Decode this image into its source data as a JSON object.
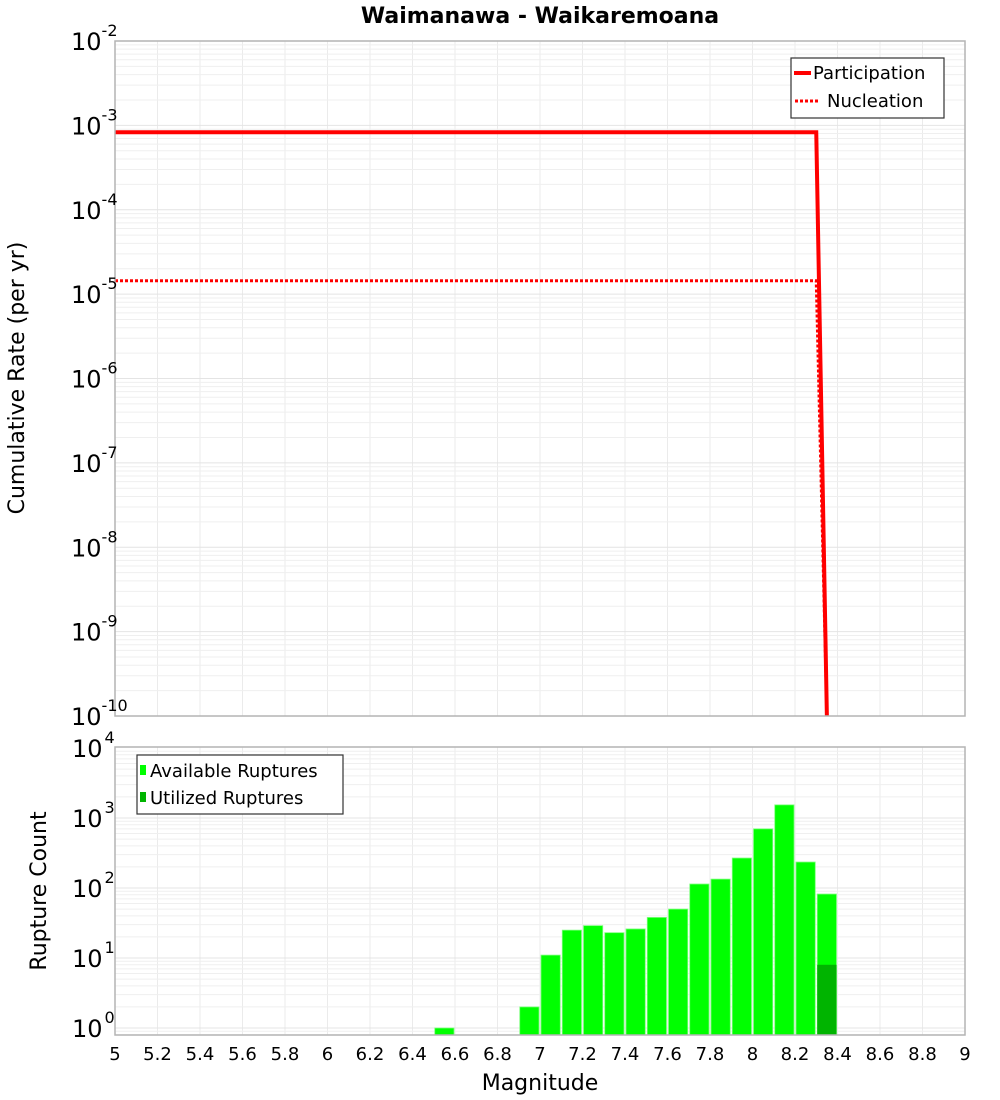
{
  "chart_data": [
    {
      "type": "line",
      "title": "Waimanawa - Waikaremoana",
      "xlabel": "Magnitude",
      "ylabel": "Cumulative Rate (per yr)",
      "xlim": [
        5,
        9
      ],
      "ylim": [
        1e-10,
        0.01
      ],
      "yscale": "log",
      "grid": true,
      "legend_position": "upper right",
      "y_ticks": [
        "10^-2",
        "10^-3",
        "10^-4",
        "10^-5",
        "10^-6",
        "10^-7",
        "10^-8",
        "10^-9",
        "10^-10"
      ],
      "series": [
        {
          "name": "Participation",
          "style": "solid",
          "color": "#ff0000",
          "x": [
            5.0,
            8.3,
            8.35
          ],
          "y": [
            0.00083,
            0.00083,
            1e-10
          ]
        },
        {
          "name": "Nucleation",
          "style": "dotted",
          "color": "#ff0000",
          "x": [
            5.0,
            8.3,
            8.35
          ],
          "y": [
            1.44e-05,
            1.44e-05,
            1e-10
          ]
        }
      ]
    },
    {
      "type": "bar",
      "xlabel": "Magnitude",
      "ylabel": "Rupture Count",
      "xlim": [
        5,
        9
      ],
      "ylim": [
        0.8,
        10000
      ],
      "yscale": "log",
      "grid": true,
      "legend_position": "upper left",
      "y_ticks": [
        "10^0",
        "10^1",
        "10^2",
        "10^3",
        "10^4"
      ],
      "x_ticks": [
        "5",
        "5.2",
        "5.4",
        "5.6",
        "5.8",
        "6",
        "6.2",
        "6.4",
        "6.6",
        "6.8",
        "7",
        "7.2",
        "7.4",
        "7.6",
        "7.8",
        "8",
        "8.2",
        "8.4",
        "8.6",
        "8.8",
        "9"
      ],
      "bin_width": 0.1,
      "categories": [
        6.55,
        6.95,
        7.05,
        7.15,
        7.25,
        7.35,
        7.45,
        7.55,
        7.65,
        7.75,
        7.85,
        7.95,
        8.05,
        8.15,
        8.25,
        8.35
      ],
      "series": [
        {
          "name": "Available Ruptures",
          "color": "#00ff00",
          "values": [
            1,
            2,
            11,
            25,
            29,
            23,
            26,
            38,
            50,
            114,
            134,
            268,
            700,
            1540,
            235,
            82
          ]
        },
        {
          "name": "Utilized Ruptures",
          "color": "#00b400",
          "values": [
            0,
            0,
            0,
            0,
            0,
            0,
            0,
            0,
            0,
            0,
            0,
            0,
            0,
            0,
            0,
            8
          ]
        }
      ]
    }
  ],
  "labels": {
    "title": "Waimanawa - Waikaremoana",
    "top_ylabel": "Cumulative Rate (per yr)",
    "bottom_ylabel": "Rupture Count",
    "xlabel": "Magnitude",
    "legend_top": [
      "Participation",
      "Nucleation"
    ],
    "legend_bottom": [
      "Available Ruptures",
      "Utilized Ruptures"
    ]
  }
}
